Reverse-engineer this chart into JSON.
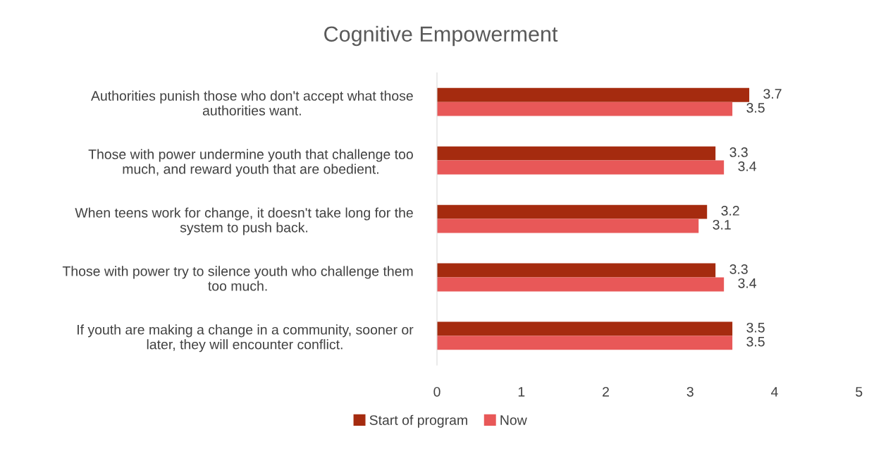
{
  "chart_data": {
    "type": "bar",
    "orientation": "horizontal",
    "title": "Cognitive Empowerment",
    "categories": [
      "Authorities punish those who don't accept what those\nauthorities want.",
      "Those with power undermine youth that challenge too\nmuch, and reward youth that are obedient.",
      "When teens work for change, it doesn't take long for the\nsystem to push back.",
      "Those with power try to silence youth who challenge them\ntoo much.",
      "If youth are making a change in a community, sooner or\nlater, they will encounter conflict."
    ],
    "series": [
      {
        "name": "Start of program",
        "color": "#a52b0f",
        "values": [
          3.7,
          3.3,
          3.2,
          3.3,
          3.5
        ]
      },
      {
        "name": "Now",
        "color": "#e85858",
        "values": [
          3.5,
          3.4,
          3.1,
          3.4,
          3.5
        ]
      }
    ],
    "xlim": [
      0,
      5
    ],
    "xticks": [
      0,
      1,
      2,
      3,
      4,
      5
    ],
    "data_labels": true,
    "grid": false,
    "legend": "bottom"
  }
}
